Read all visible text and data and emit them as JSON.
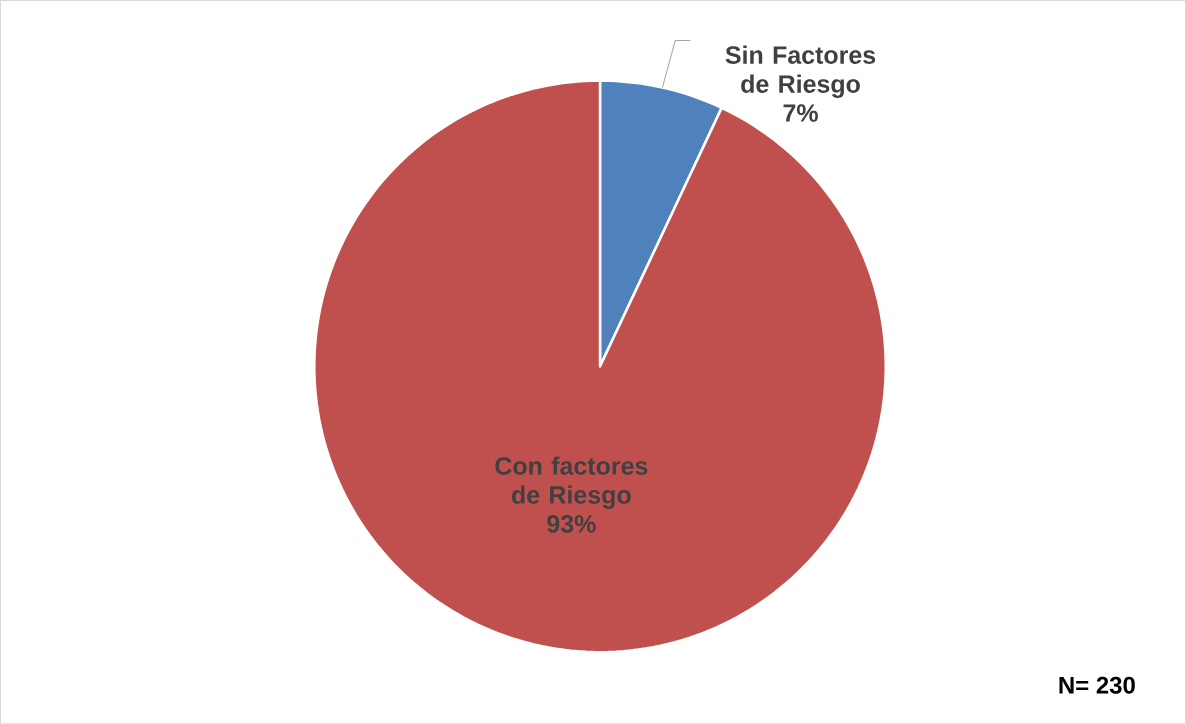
{
  "chart_data": {
    "type": "pie",
    "categories": [
      "Sin Factores de Riesgo",
      "Con factores de Riesgo"
    ],
    "values": [
      7,
      93
    ],
    "colors": [
      "#4f81bd",
      "#c0504d"
    ],
    "value_labels": [
      "7%",
      "93%"
    ],
    "annotations": [
      "N= 230"
    ]
  }
}
